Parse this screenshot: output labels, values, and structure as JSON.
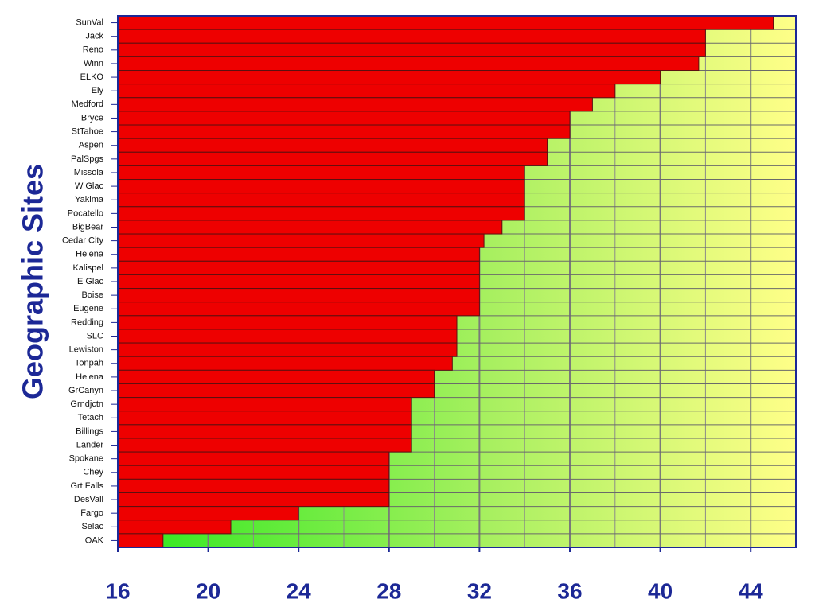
{
  "chart_data": {
    "type": "hbar",
    "y_label": "Geographic Sites",
    "categories": [
      "SunVal",
      "Jack",
      "Reno",
      "Winn",
      "ELKO",
      "Ely",
      "Medford",
      "Bryce",
      "StTahoe",
      "Aspen",
      "PalSpgs",
      "Missola",
      "W Glac",
      "Yakima",
      "Pocatello",
      "BigBear",
      "Cedar City",
      "Helena",
      "Kalispel",
      "E Glac",
      "Boise",
      "Eugene",
      "Redding",
      "SLC",
      "Lewiston",
      "Tonpah",
      "Helena",
      "GrCanyn",
      "Grndjctn",
      "Tetach",
      "Billings",
      "Lander",
      "Spokane",
      "Chey",
      "Grt Falls",
      "DesVall",
      "Fargo",
      "Selac",
      "OAK"
    ],
    "values": [
      45,
      42,
      42,
      41.7,
      40,
      38,
      37,
      36,
      36,
      35,
      35,
      34,
      34,
      34,
      34,
      33,
      32.2,
      32,
      32,
      32,
      32,
      32,
      31,
      31,
      31,
      30.8,
      30,
      30,
      29,
      29,
      29,
      29,
      28,
      28,
      28,
      28,
      24,
      21,
      18
    ],
    "color": "#ee0000",
    "xlim": [
      16,
      46
    ],
    "xticks": [
      16,
      20,
      24,
      28,
      32,
      36,
      40,
      44
    ],
    "xminorticks": [
      18,
      22,
      26,
      30,
      34,
      38,
      42
    ],
    "grid": true
  }
}
